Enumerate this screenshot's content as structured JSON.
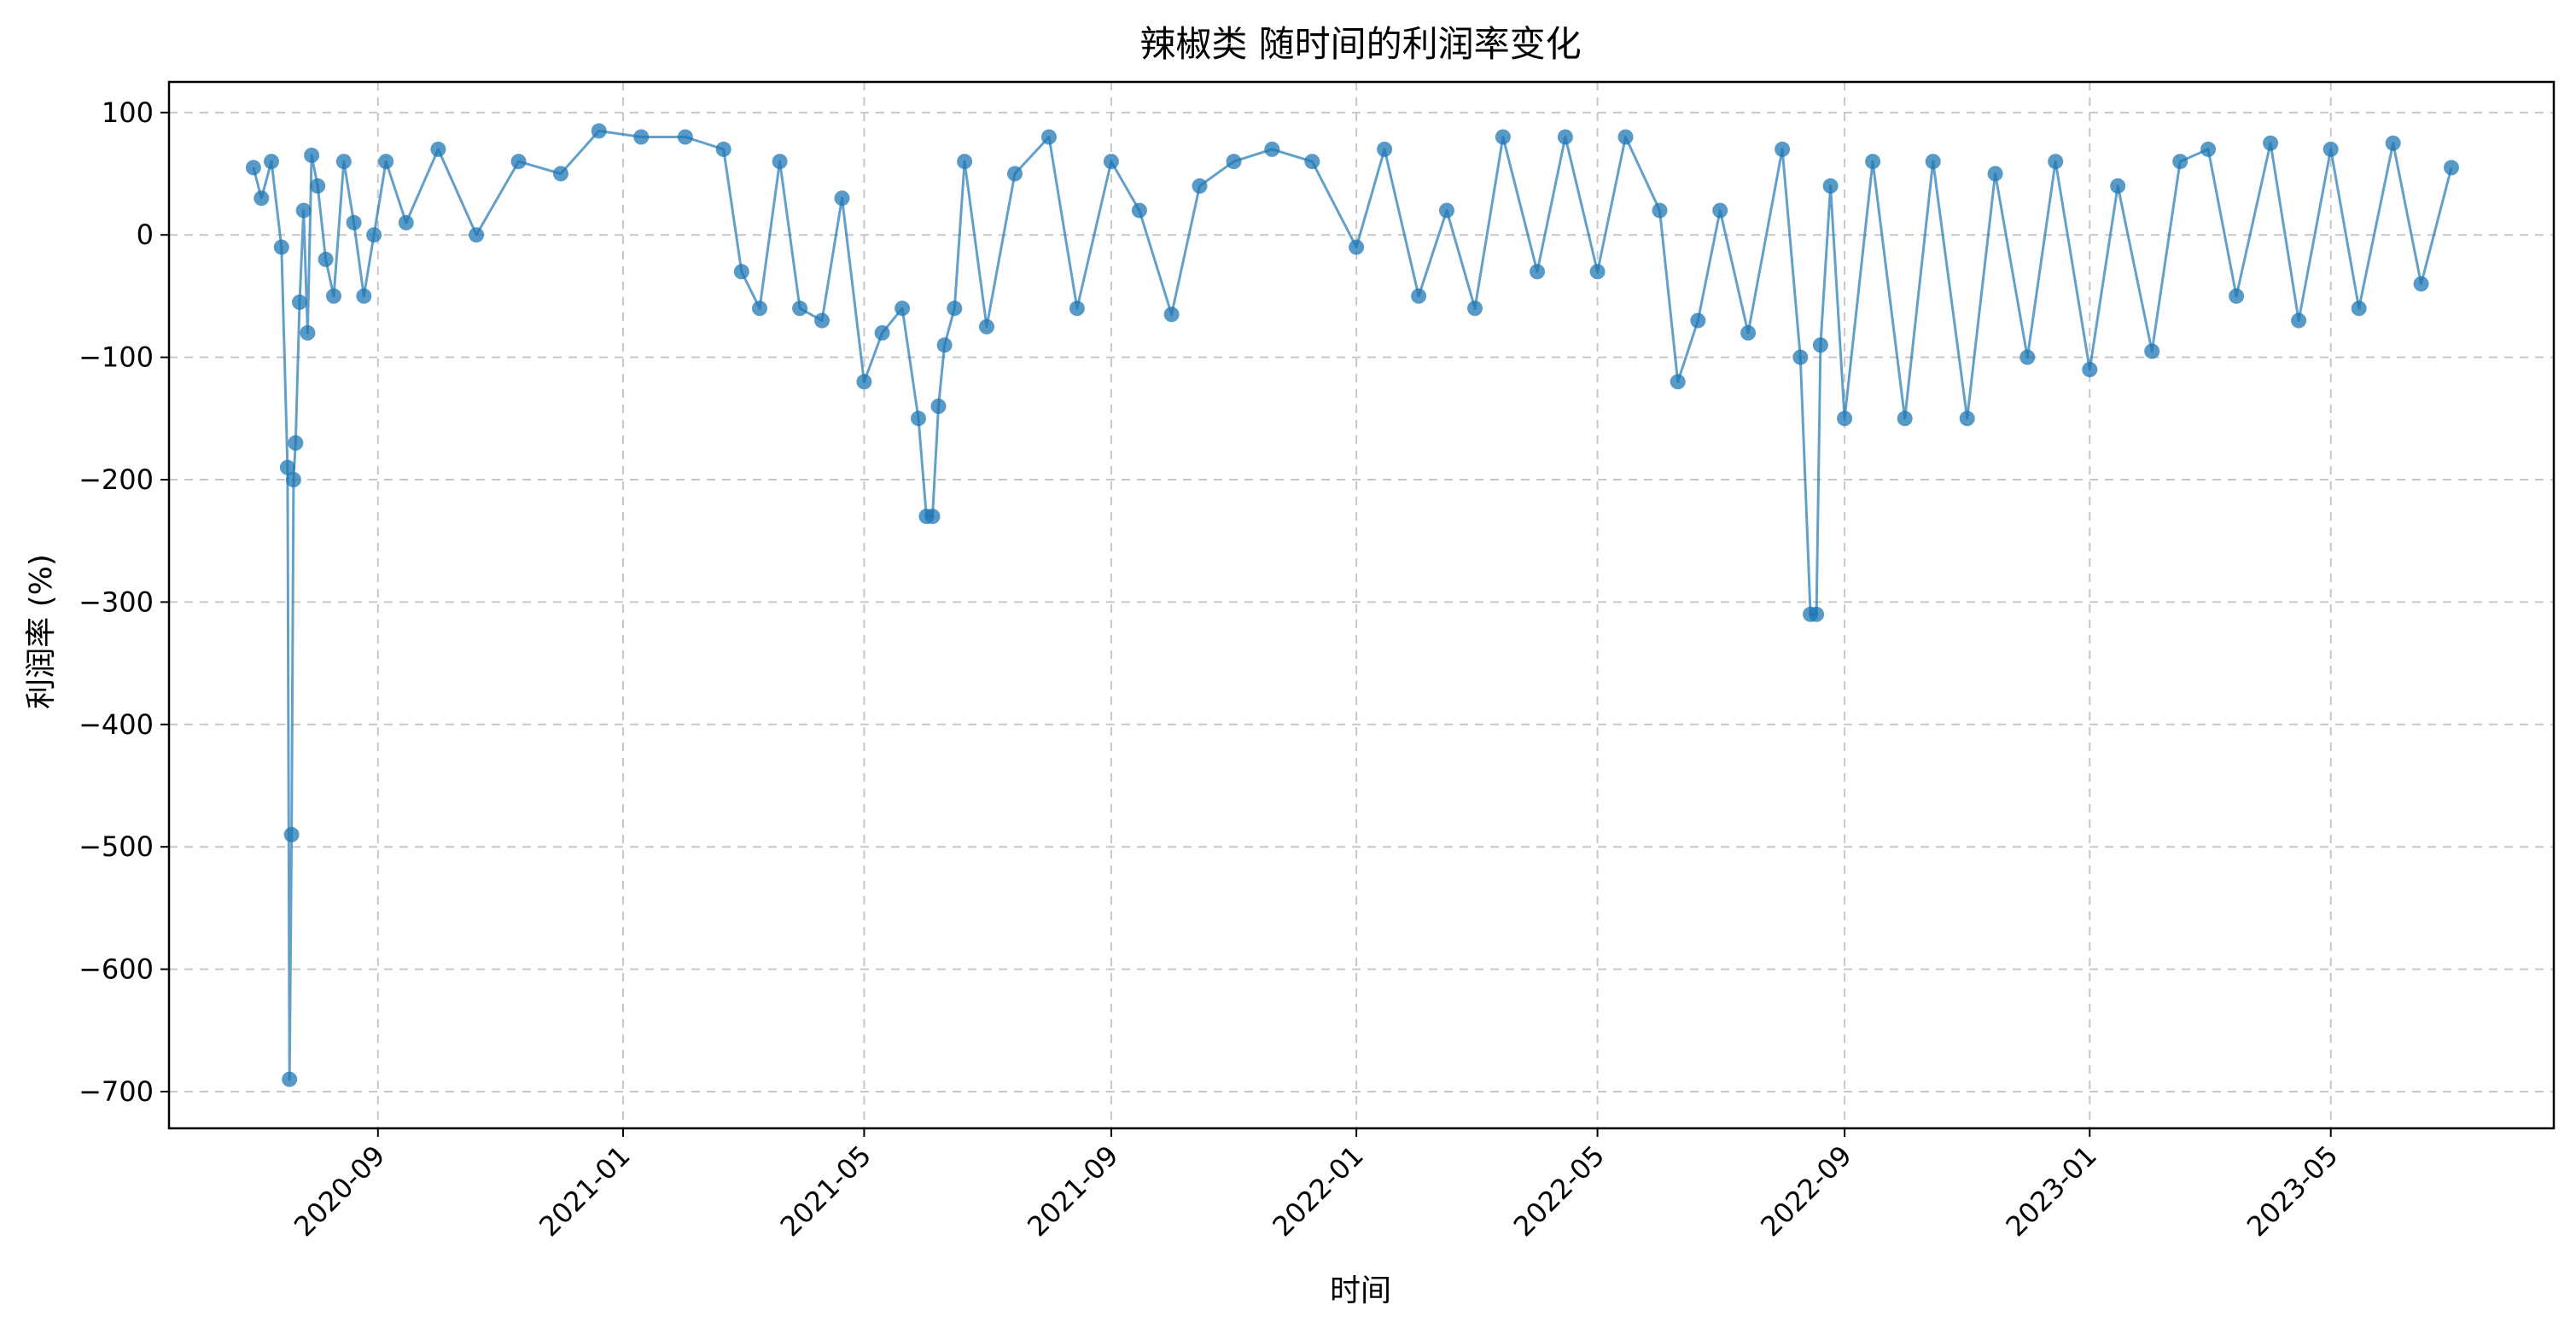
{
  "chart_data": {
    "type": "line",
    "title": "辣椒类 随时间的利润率变化",
    "xlabel": "时间",
    "ylabel": "利润率 (%)",
    "color": "#1f77b4",
    "grid": true,
    "xlim": [
      "2020-05-20",
      "2023-08-20"
    ],
    "ylim": [
      -730,
      125
    ],
    "y_ticks": [
      100,
      0,
      -100,
      -200,
      -300,
      -400,
      -500,
      -600,
      -700
    ],
    "x_ticks": [
      "2020-09",
      "2021-01",
      "2021-05",
      "2021-09",
      "2022-01",
      "2022-05",
      "2022-09",
      "2023-01",
      "2023-05"
    ],
    "series": [
      {
        "x": [
          "2020-07-01",
          "2020-07-05",
          "2020-07-10",
          "2020-07-15",
          "2020-07-18",
          "2020-07-19",
          "2020-07-20",
          "2020-07-21",
          "2020-07-22",
          "2020-07-24",
          "2020-07-26",
          "2020-07-28",
          "2020-07-30",
          "2020-08-02",
          "2020-08-06",
          "2020-08-10",
          "2020-08-15",
          "2020-08-20",
          "2020-08-25",
          "2020-08-30",
          "2020-09-05",
          "2020-09-15",
          "2020-10-01",
          "2020-10-20",
          "2020-11-10",
          "2020-12-01",
          "2020-12-20",
          "2021-01-10",
          "2021-02-01",
          "2021-02-20",
          "2021-03-01",
          "2021-03-10",
          "2021-03-20",
          "2021-03-30",
          "2021-04-10",
          "2021-04-20",
          "2021-05-01",
          "2021-05-10",
          "2021-05-20",
          "2021-05-28",
          "2021-06-01",
          "2021-06-04",
          "2021-06-07",
          "2021-06-10",
          "2021-06-15",
          "2021-06-20",
          "2021-07-01",
          "2021-07-15",
          "2021-08-01",
          "2021-08-15",
          "2021-09-01",
          "2021-09-15",
          "2021-10-01",
          "2021-10-15",
          "2021-11-01",
          "2021-11-20",
          "2021-12-10",
          "2022-01-01",
          "2022-01-15",
          "2022-02-01",
          "2022-02-15",
          "2022-03-01",
          "2022-03-15",
          "2022-04-01",
          "2022-04-15",
          "2022-05-01",
          "2022-05-15",
          "2022-06-01",
          "2022-06-10",
          "2022-06-20",
          "2022-07-01",
          "2022-07-15",
          "2022-08-01",
          "2022-08-10",
          "2022-08-15",
          "2022-08-18",
          "2022-08-20",
          "2022-08-25",
          "2022-09-01",
          "2022-09-15",
          "2022-10-01",
          "2022-10-15",
          "2022-11-01",
          "2022-11-15",
          "2022-12-01",
          "2022-12-15",
          "2023-01-01",
          "2023-01-15",
          "2023-02-01",
          "2023-02-15",
          "2023-03-01",
          "2023-03-15",
          "2023-04-01",
          "2023-04-15",
          "2023-05-01",
          "2023-05-15",
          "2023-06-01",
          "2023-06-15",
          "2023-06-30"
        ],
        "y": [
          55,
          30,
          60,
          -10,
          -190,
          -690,
          -490,
          -200,
          -170,
          -55,
          20,
          -80,
          65,
          40,
          -20,
          -50,
          60,
          10,
          -50,
          0,
          60,
          10,
          70,
          0,
          60,
          50,
          85,
          80,
          80,
          70,
          -30,
          -60,
          60,
          -60,
          -70,
          30,
          -120,
          -80,
          -60,
          -150,
          -230,
          -230,
          -140,
          -90,
          -60,
          60,
          -75,
          50,
          80,
          -60,
          60,
          20,
          -65,
          40,
          60,
          70,
          60,
          -10,
          70,
          -50,
          20,
          -60,
          80,
          -30,
          80,
          -30,
          80,
          20,
          -120,
          -70,
          20,
          -80,
          70,
          -100,
          -310,
          -310,
          -90,
          40,
          -150,
          60,
          -150,
          60,
          -150,
          50,
          -100,
          60,
          -110,
          40,
          -95,
          60,
          70,
          -50,
          75,
          -70,
          70,
          -60,
          75,
          -40,
          55
        ]
      }
    ]
  }
}
